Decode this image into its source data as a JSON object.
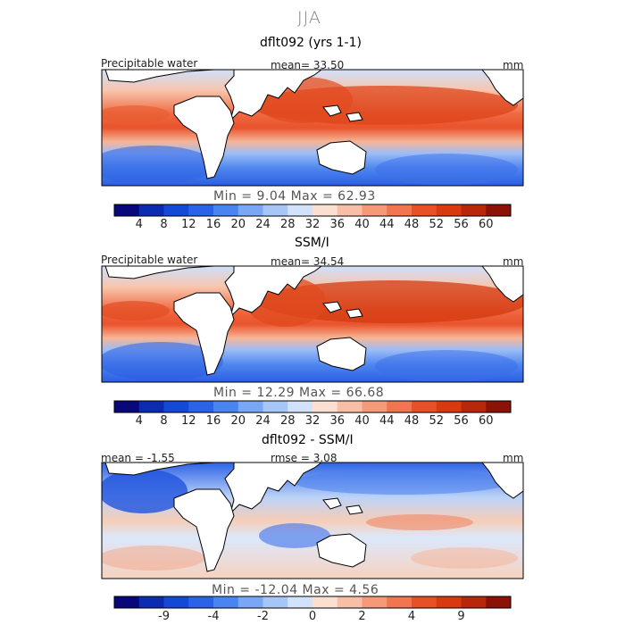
{
  "season": "JJA",
  "colors": {
    "full_scale": [
      "#08087a",
      "#0b2bb0",
      "#1448d6",
      "#2a63e8",
      "#4a84f0",
      "#7aa7f5",
      "#a7c6f8",
      "#d2e2fa",
      "#fbe0d2",
      "#f8bfa6",
      "#f59a78",
      "#f07550",
      "#e85128",
      "#d8390f",
      "#b8260c",
      "#8a1207"
    ],
    "diff_scale": [
      "#08087a",
      "#0b2bb0",
      "#1448d6",
      "#2a63e8",
      "#4a84f0",
      "#7aa7f5",
      "#a7c6f8",
      "#d2e2fa",
      "#fbe0d2",
      "#f8bfa6",
      "#f59a78",
      "#f07550",
      "#e85128",
      "#d8390f",
      "#b8260c",
      "#8a1207"
    ]
  },
  "panels": [
    {
      "title": "dflt092 (yrs 1-1)",
      "left_label": "Precipitable water",
      "center_label": "mean=   33.50",
      "right_label": "mm",
      "min_max": "Min =    9.04  Max =   62.93",
      "colorbar_ticks": [
        "4",
        "8",
        "12",
        "16",
        "20",
        "24",
        "28",
        "32",
        "36",
        "40",
        "44",
        "48",
        "52",
        "56",
        "60"
      ]
    },
    {
      "title": "SSM/I",
      "left_label": "Precipitable water",
      "center_label": "mean=   34.54",
      "right_label": "mm",
      "min_max": "Min =   12.29  Max =   66.68",
      "colorbar_ticks": [
        "4",
        "8",
        "12",
        "16",
        "20",
        "24",
        "28",
        "32",
        "36",
        "40",
        "44",
        "48",
        "52",
        "56",
        "60"
      ]
    },
    {
      "title": "dflt092 - SSM/I",
      "left_label": "mean =   -1.55",
      "center_label": "rmse =    3.08",
      "right_label": "mm",
      "min_max": "Min =  -12.04  Max =    4.56",
      "colorbar_ticks": [
        "-9",
        "-4",
        "-2",
        "0",
        "2",
        "4",
        "9"
      ]
    }
  ],
  "chart_data": [
    {
      "type": "heatmap",
      "title": "dflt092 (yrs 1-1)",
      "variable": "Precipitable water",
      "units": "mm",
      "mean": 33.5,
      "min": 9.04,
      "max": 62.93,
      "levels": [
        4,
        8,
        12,
        16,
        20,
        24,
        28,
        32,
        36,
        40,
        44,
        48,
        52,
        56,
        60
      ]
    },
    {
      "type": "heatmap",
      "title": "SSM/I",
      "variable": "Precipitable water",
      "units": "mm",
      "mean": 34.54,
      "min": 12.29,
      "max": 66.68,
      "levels": [
        4,
        8,
        12,
        16,
        20,
        24,
        28,
        32,
        36,
        40,
        44,
        48,
        52,
        56,
        60
      ]
    },
    {
      "type": "heatmap",
      "title": "dflt092 - SSM/I",
      "units": "mm",
      "mean": -1.55,
      "rmse": 3.08,
      "min": -12.04,
      "max": 4.56,
      "levels": [
        -9,
        -4,
        -2,
        0,
        2,
        4,
        9
      ]
    }
  ]
}
